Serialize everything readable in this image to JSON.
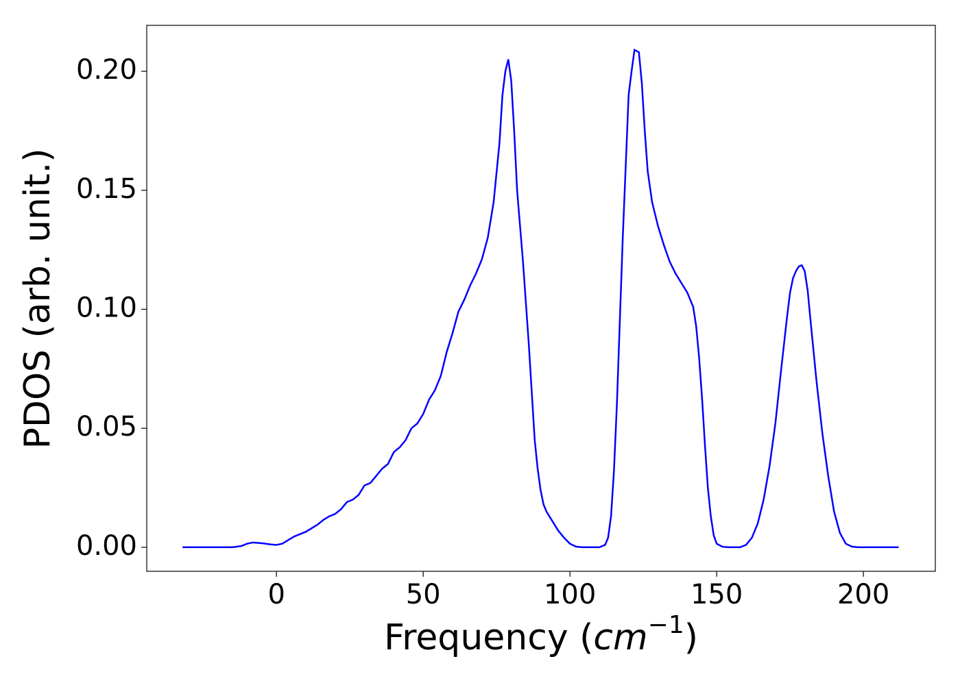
{
  "chart_data": {
    "type": "line",
    "xlabel": [
      "Frequency (",
      "cm",
      "−1",
      ")"
    ],
    "ylabel": "PDOS (arb. unit.)",
    "x": [
      -32,
      -15,
      -12,
      -10,
      -8,
      -5,
      -2,
      0,
      2,
      4,
      6,
      8,
      10,
      12,
      14,
      16,
      18,
      20,
      22,
      24,
      26,
      28,
      30,
      32,
      34,
      36,
      38,
      40,
      42,
      44,
      46,
      48,
      50,
      52,
      54,
      56,
      58,
      60,
      62,
      64,
      66,
      68,
      70,
      72,
      74,
      76,
      77,
      78,
      79,
      80,
      81,
      82,
      84,
      86,
      87,
      88,
      89,
      90,
      91,
      92,
      94,
      96,
      98,
      100,
      102,
      104,
      110,
      112,
      113,
      114,
      115,
      116,
      117,
      118,
      119,
      120,
      121,
      122,
      123.5,
      124.5,
      125.5,
      126.5,
      128,
      130,
      132,
      134,
      136,
      138,
      140,
      142,
      143,
      144,
      145,
      146,
      147,
      148,
      149,
      150,
      152,
      154,
      158,
      160,
      162,
      164,
      166,
      168,
      170,
      172,
      174,
      175,
      176,
      177,
      178,
      179,
      180,
      181,
      182,
      184,
      186,
      188,
      190,
      192,
      194,
      196,
      198,
      212
    ],
    "series": [
      {
        "color": "#0000ff",
        "values": [
          0,
          0,
          0.0005,
          0.0015,
          0.002,
          0.0017,
          0.0012,
          0.001,
          0.0015,
          0.003,
          0.0045,
          0.0055,
          0.0065,
          0.008,
          0.0095,
          0.0115,
          0.013,
          0.014,
          0.016,
          0.019,
          0.02,
          0.022,
          0.026,
          0.027,
          0.03,
          0.033,
          0.035,
          0.04,
          0.042,
          0.045,
          0.05,
          0.052,
          0.056,
          0.062,
          0.066,
          0.072,
          0.082,
          0.09,
          0.099,
          0.104,
          0.11,
          0.115,
          0.121,
          0.13,
          0.145,
          0.17,
          0.19,
          0.2,
          0.205,
          0.196,
          0.175,
          0.15,
          0.12,
          0.085,
          0.065,
          0.045,
          0.033,
          0.024,
          0.018,
          0.015,
          0.011,
          0.007,
          0.004,
          0.0015,
          0.0003,
          0,
          0,
          0.001,
          0.004,
          0.013,
          0.032,
          0.06,
          0.095,
          0.13,
          0.16,
          0.19,
          0.2,
          0.209,
          0.208,
          0.195,
          0.175,
          0.158,
          0.145,
          0.135,
          0.127,
          0.12,
          0.115,
          0.111,
          0.107,
          0.101,
          0.093,
          0.08,
          0.063,
          0.043,
          0.025,
          0.013,
          0.005,
          0.0015,
          0.0002,
          0,
          0,
          0.001,
          0.004,
          0.01,
          0.02,
          0.034,
          0.052,
          0.075,
          0.097,
          0.107,
          0.113,
          0.116,
          0.118,
          0.1185,
          0.116,
          0.108,
          0.095,
          0.07,
          0.048,
          0.03,
          0.015,
          0.006,
          0.0015,
          0.0003,
          0,
          0
        ]
      }
    ],
    "xlim": [
      -44.2,
      224.5
    ],
    "xticks": [
      0,
      50,
      100,
      150,
      200
    ],
    "ylim": [
      -0.0101,
      0.2193
    ],
    "yticks": [
      {
        "value": 0,
        "label": "0.00"
      },
      0.05,
      {
        "value": 0.1,
        "label": "0.10"
      },
      0.15,
      {
        "value": 0.2,
        "label": "0.20"
      }
    ]
  }
}
